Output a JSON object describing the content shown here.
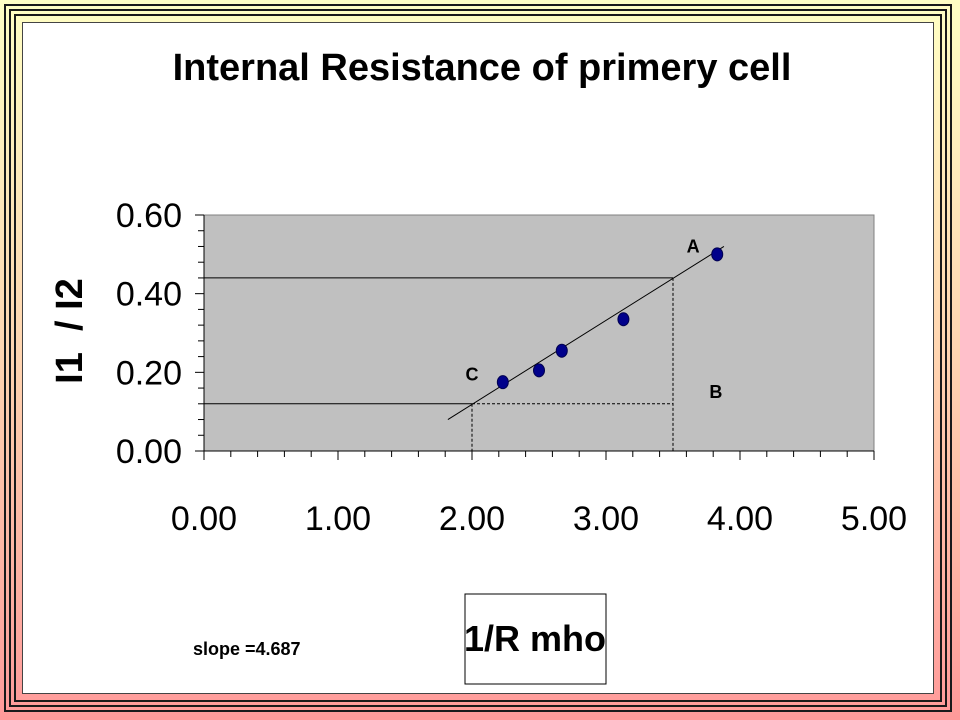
{
  "chart_data": {
    "type": "scatter",
    "title": "Internal Resistance of primery cell",
    "xlabel": "1/R mho",
    "ylabel": "I1  / I2",
    "xlim": [
      0,
      5
    ],
    "ylim": [
      0,
      0.6
    ],
    "x_ticks": [
      "0.00",
      "1.00",
      "2.00",
      "3.00",
      "4.00",
      "5.00"
    ],
    "y_ticks": [
      "0.00",
      "0.20",
      "0.40",
      "0.60"
    ],
    "grid": false,
    "plot_background": "#c0c0c0",
    "marker_color": "#00008b",
    "points": [
      {
        "x": 2.23,
        "y": 0.175
      },
      {
        "x": 2.5,
        "y": 0.205
      },
      {
        "x": 2.67,
        "y": 0.255
      },
      {
        "x": 3.13,
        "y": 0.335
      },
      {
        "x": 3.83,
        "y": 0.5
      }
    ],
    "trendline": {
      "x": [
        1.82,
        3.88
      ],
      "y": [
        0.08,
        0.52
      ]
    },
    "guides": {
      "c": {
        "x": 2.0,
        "y": 0.12
      },
      "a": {
        "x": 3.5,
        "y": 0.44
      }
    },
    "annotations": [
      {
        "label": "A",
        "x": 3.65,
        "y": 0.52
      },
      {
        "label": "C",
        "x": 2.0,
        "y": 0.195
      },
      {
        "label": "B",
        "x": 3.82,
        "y": 0.15
      }
    ],
    "note": "slope =4.687"
  }
}
